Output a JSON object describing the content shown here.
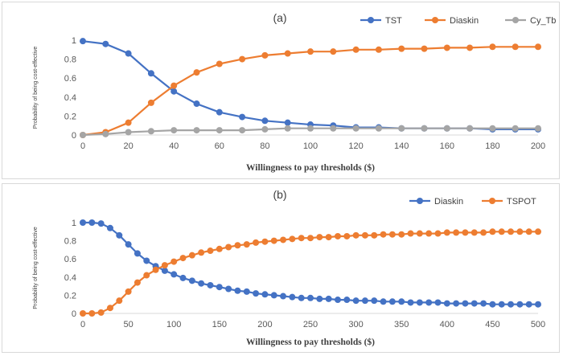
{
  "chart_data": [
    {
      "type": "line",
      "title": "(a)",
      "xlabel": "Willingness to pay thresholds ($)",
      "ylabel": "Probability of being cost-effective",
      "xlim": [
        0,
        200
      ],
      "ylim": [
        0,
        1
      ],
      "x_ticks": [
        0,
        20,
        40,
        60,
        80,
        100,
        120,
        140,
        160,
        180,
        200
      ],
      "y_ticks": [
        0,
        0.2,
        0.4,
        0.6,
        0.8,
        1
      ],
      "x": [
        0,
        10,
        20,
        30,
        40,
        50,
        60,
        70,
        80,
        90,
        100,
        110,
        120,
        130,
        140,
        150,
        160,
        170,
        180,
        190,
        200
      ],
      "series": [
        {
          "name": "TST",
          "color": "#4472c4",
          "values": [
            0.99,
            0.96,
            0.86,
            0.65,
            0.46,
            0.33,
            0.24,
            0.19,
            0.15,
            0.13,
            0.11,
            0.1,
            0.08,
            0.08,
            0.07,
            0.07,
            0.07,
            0.07,
            0.06,
            0.06,
            0.06
          ]
        },
        {
          "name": "Diaskin",
          "color": "#ed7d31",
          "values": [
            0.0,
            0.03,
            0.13,
            0.34,
            0.52,
            0.66,
            0.75,
            0.8,
            0.84,
            0.86,
            0.88,
            0.88,
            0.9,
            0.9,
            0.91,
            0.91,
            0.92,
            0.92,
            0.93,
            0.93,
            0.93
          ]
        },
        {
          "name": "Cy_Tb",
          "color": "#a5a5a5",
          "values": [
            0.0,
            0.01,
            0.03,
            0.04,
            0.05,
            0.05,
            0.05,
            0.05,
            0.06,
            0.07,
            0.07,
            0.07,
            0.07,
            0.07,
            0.07,
            0.07,
            0.07,
            0.07,
            0.07,
            0.07,
            0.07
          ]
        }
      ]
    },
    {
      "type": "line",
      "title": "(b)",
      "xlabel": "Willingness to pay thresholds ($)",
      "ylabel": "Probability of being cost-effective",
      "xlim": [
        0,
        500
      ],
      "ylim": [
        0,
        1
      ],
      "x_ticks": [
        0,
        50,
        100,
        150,
        200,
        250,
        300,
        350,
        400,
        450,
        500
      ],
      "y_ticks": [
        0,
        0.2,
        0.4,
        0.6,
        0.8,
        1
      ],
      "x": [
        0,
        10,
        20,
        30,
        40,
        50,
        60,
        70,
        80,
        90,
        100,
        110,
        120,
        130,
        140,
        150,
        160,
        170,
        180,
        190,
        200,
        210,
        220,
        230,
        240,
        250,
        260,
        270,
        280,
        290,
        300,
        310,
        320,
        330,
        340,
        350,
        360,
        370,
        380,
        390,
        400,
        410,
        420,
        430,
        440,
        450,
        460,
        470,
        480,
        490,
        500
      ],
      "series": [
        {
          "name": "Diaskin",
          "color": "#4472c4",
          "values": [
            1.0,
            1.0,
            0.99,
            0.94,
            0.86,
            0.76,
            0.66,
            0.58,
            0.52,
            0.47,
            0.43,
            0.39,
            0.36,
            0.33,
            0.31,
            0.29,
            0.27,
            0.25,
            0.24,
            0.22,
            0.21,
            0.2,
            0.19,
            0.18,
            0.17,
            0.17,
            0.16,
            0.16,
            0.15,
            0.15,
            0.14,
            0.14,
            0.14,
            0.13,
            0.13,
            0.13,
            0.12,
            0.12,
            0.12,
            0.12,
            0.11,
            0.11,
            0.11,
            0.11,
            0.11,
            0.1,
            0.1,
            0.1,
            0.1,
            0.1,
            0.1
          ]
        },
        {
          "name": "TSPOT",
          "color": "#ed7d31",
          "values": [
            0.0,
            0.0,
            0.01,
            0.06,
            0.14,
            0.24,
            0.34,
            0.42,
            0.48,
            0.53,
            0.57,
            0.61,
            0.64,
            0.67,
            0.69,
            0.71,
            0.73,
            0.75,
            0.76,
            0.78,
            0.79,
            0.8,
            0.81,
            0.82,
            0.83,
            0.83,
            0.84,
            0.84,
            0.85,
            0.85,
            0.86,
            0.86,
            0.86,
            0.87,
            0.87,
            0.87,
            0.88,
            0.88,
            0.88,
            0.88,
            0.89,
            0.89,
            0.89,
            0.89,
            0.89,
            0.9,
            0.9,
            0.9,
            0.9,
            0.9,
            0.9
          ]
        }
      ]
    }
  ]
}
